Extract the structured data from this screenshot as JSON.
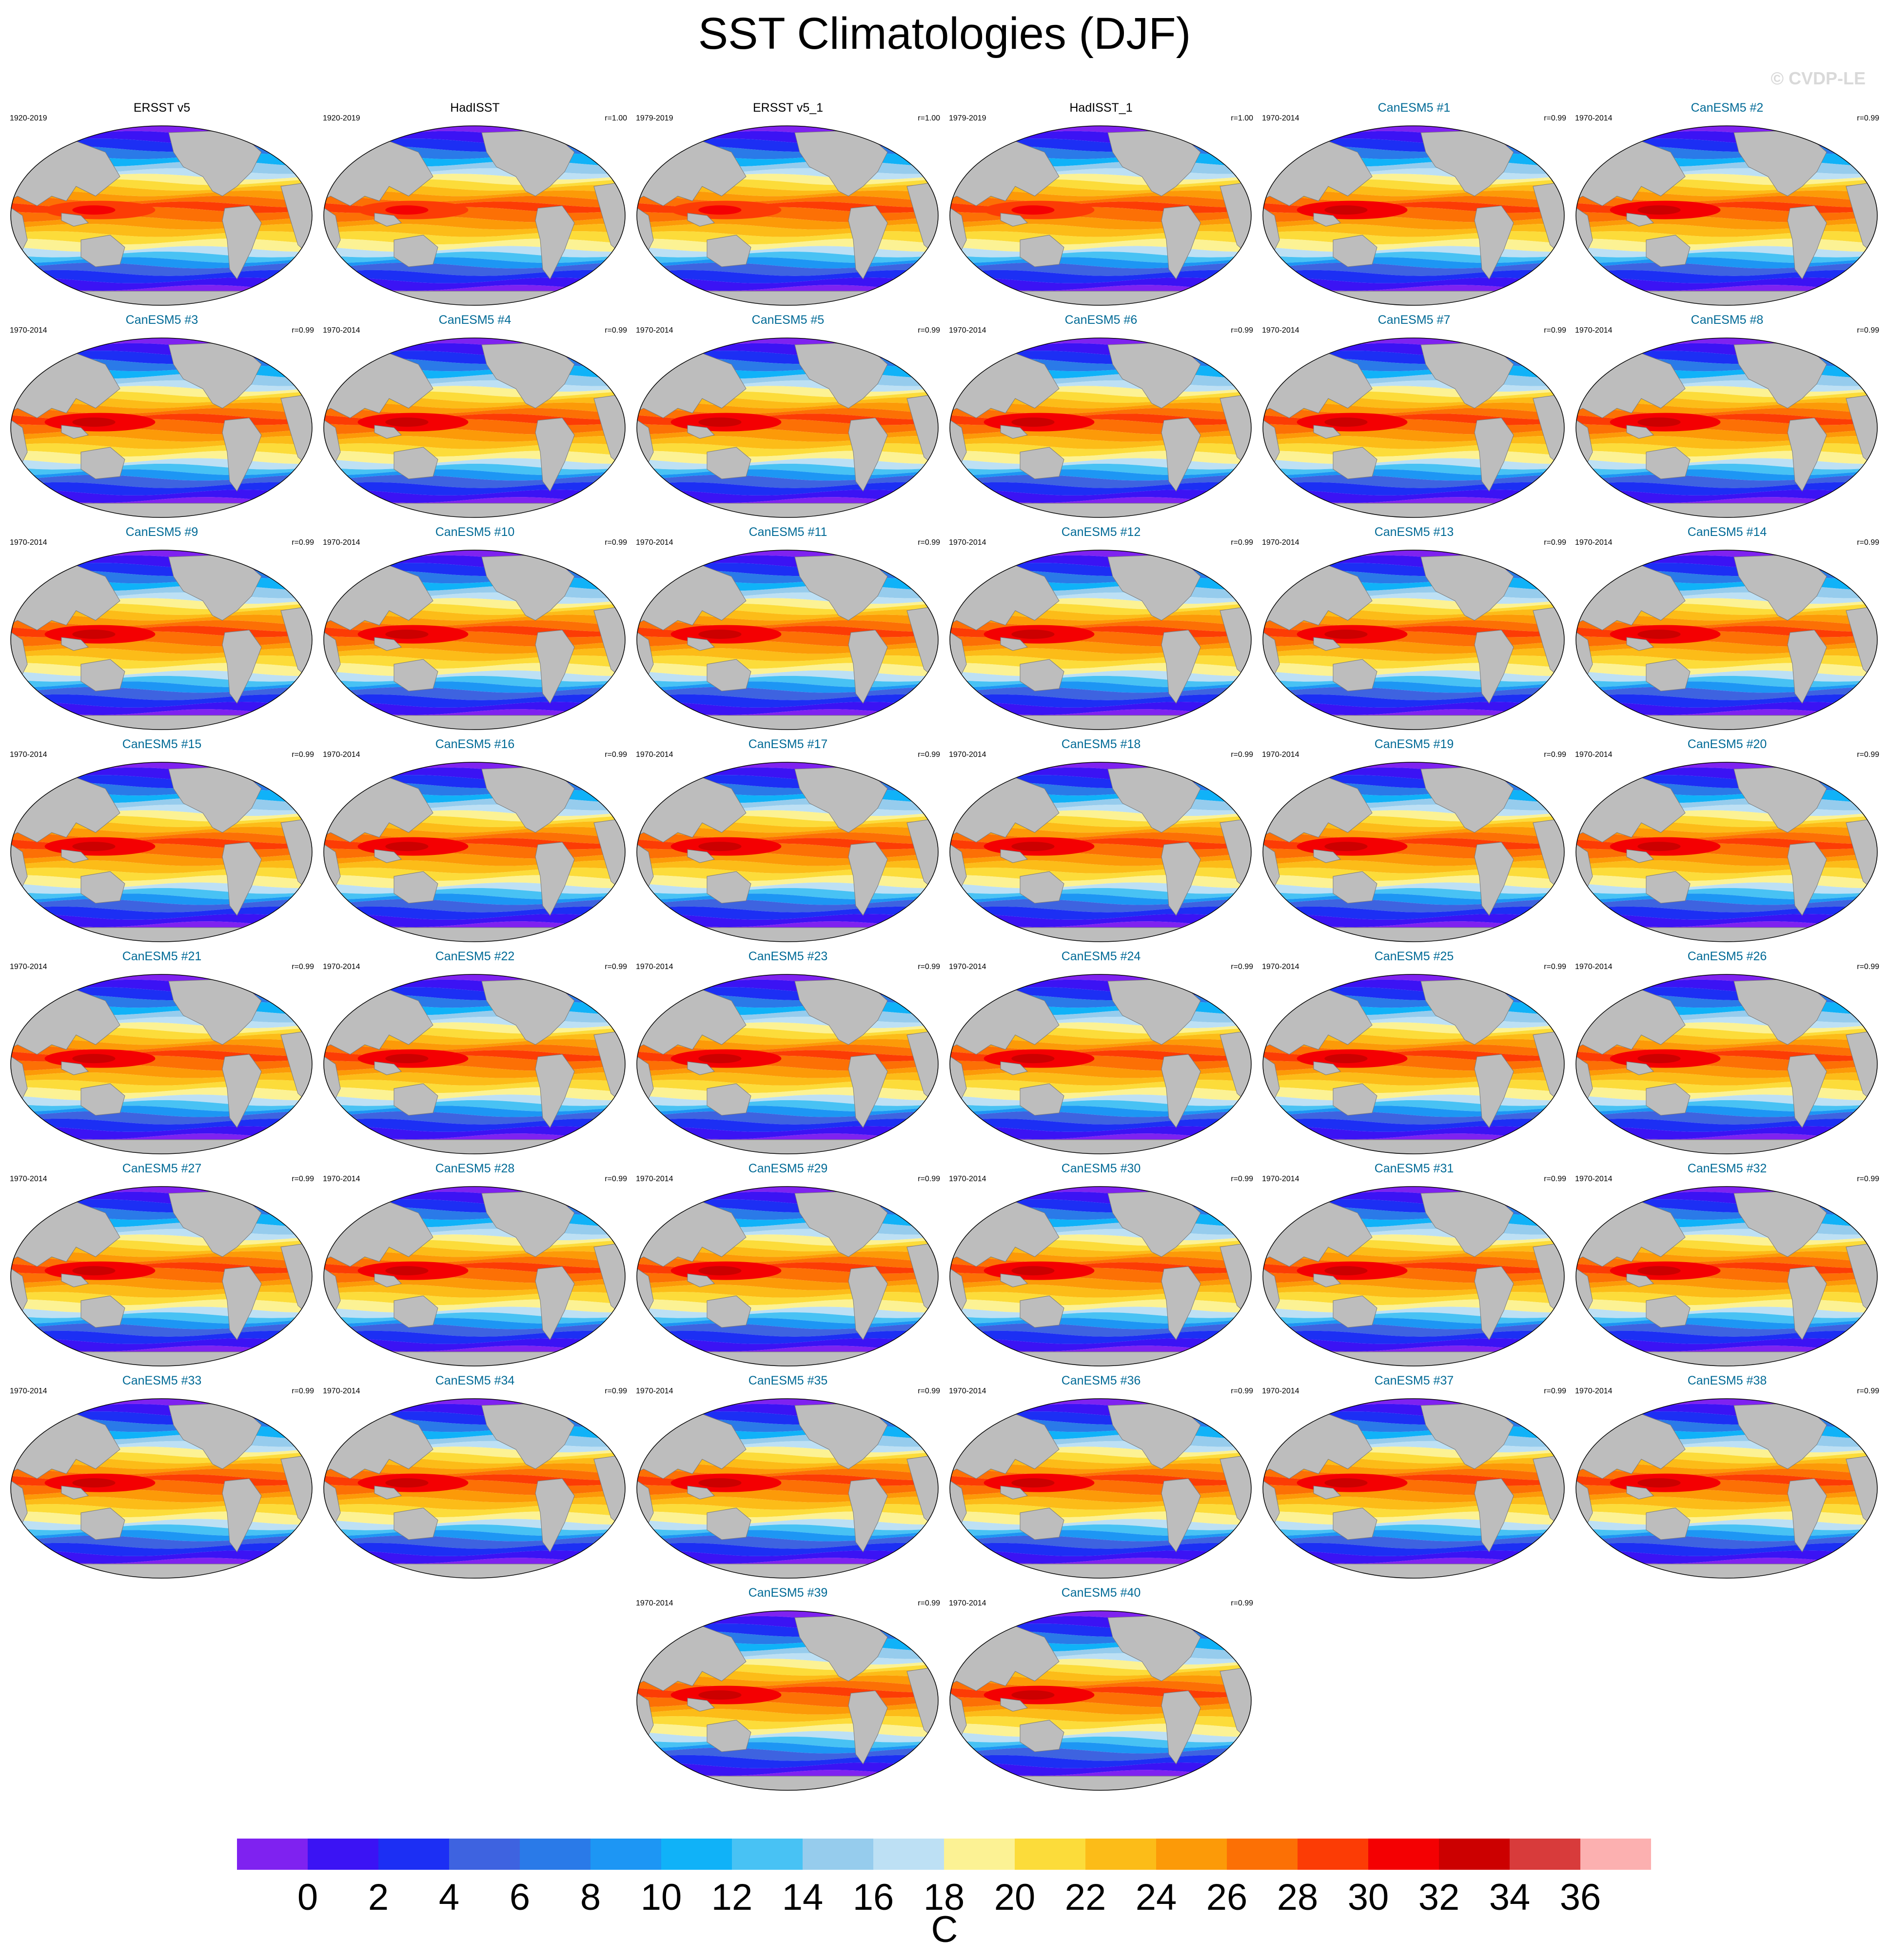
{
  "title": "SST Climatologies (DJF)",
  "copyright": "© CVDP-LE",
  "chart_data": {
    "type": "heatmap",
    "title": "SST Climatologies (DJF)",
    "projection": "Robinson global map",
    "colorbar": {
      "unit": "C",
      "levels": [
        0,
        2,
        4,
        6,
        8,
        10,
        12,
        14,
        16,
        18,
        20,
        22,
        24,
        26,
        28,
        30,
        32,
        34,
        36
      ],
      "tick_labels": [
        "0",
        "2",
        "4",
        "6",
        "8",
        "10",
        "12",
        "14",
        "16",
        "18",
        "20",
        "22",
        "24",
        "26",
        "28",
        "30",
        "32",
        "34",
        "36"
      ],
      "colors": [
        "#7f22f0",
        "#3b13f4",
        "#1c2ff4",
        "#3e63e0",
        "#2a7ae8",
        "#1d96f4",
        "#10b2f8",
        "#48c2f4",
        "#96cced",
        "#bde0f4",
        "#fcf294",
        "#fcdc3a",
        "#fcbc18",
        "#fc9a08",
        "#fc7005",
        "#fc3c05",
        "#f40002",
        "#cc0000",
        "#d83b3b",
        "#fcb0b0"
      ]
    },
    "land_color": "#bdbdbd",
    "panels": [
      {
        "title": "ERSST v5",
        "period": "1920-2019",
        "r": "",
        "kind": "obs"
      },
      {
        "title": "HadISST",
        "period": "1920-2019",
        "r": "r=1.00",
        "kind": "obs"
      },
      {
        "title": "ERSST v5_1",
        "period": "1979-2019",
        "r": "r=1.00",
        "kind": "obs"
      },
      {
        "title": "HadISST_1",
        "period": "1979-2019",
        "r": "r=1.00",
        "kind": "obs"
      },
      {
        "title": "CanESM5 #1",
        "period": "1970-2014",
        "r": "r=0.99",
        "kind": "model"
      },
      {
        "title": "CanESM5 #2",
        "period": "1970-2014",
        "r": "r=0.99",
        "kind": "model"
      },
      {
        "title": "CanESM5 #3",
        "period": "1970-2014",
        "r": "r=0.99",
        "kind": "model"
      },
      {
        "title": "CanESM5 #4",
        "period": "1970-2014",
        "r": "r=0.99",
        "kind": "model"
      },
      {
        "title": "CanESM5 #5",
        "period": "1970-2014",
        "r": "r=0.99",
        "kind": "model"
      },
      {
        "title": "CanESM5 #6",
        "period": "1970-2014",
        "r": "r=0.99",
        "kind": "model"
      },
      {
        "title": "CanESM5 #7",
        "period": "1970-2014",
        "r": "r=0.99",
        "kind": "model"
      },
      {
        "title": "CanESM5 #8",
        "period": "1970-2014",
        "r": "r=0.99",
        "kind": "model"
      },
      {
        "title": "CanESM5 #9",
        "period": "1970-2014",
        "r": "r=0.99",
        "kind": "model"
      },
      {
        "title": "CanESM5 #10",
        "period": "1970-2014",
        "r": "r=0.99",
        "kind": "model"
      },
      {
        "title": "CanESM5 #11",
        "period": "1970-2014",
        "r": "r=0.99",
        "kind": "model"
      },
      {
        "title": "CanESM5 #12",
        "period": "1970-2014",
        "r": "r=0.99",
        "kind": "model"
      },
      {
        "title": "CanESM5 #13",
        "period": "1970-2014",
        "r": "r=0.99",
        "kind": "model"
      },
      {
        "title": "CanESM5 #14",
        "period": "1970-2014",
        "r": "r=0.99",
        "kind": "model"
      },
      {
        "title": "CanESM5 #15",
        "period": "1970-2014",
        "r": "r=0.99",
        "kind": "model"
      },
      {
        "title": "CanESM5 #16",
        "period": "1970-2014",
        "r": "r=0.99",
        "kind": "model"
      },
      {
        "title": "CanESM5 #17",
        "period": "1970-2014",
        "r": "r=0.99",
        "kind": "model"
      },
      {
        "title": "CanESM5 #18",
        "period": "1970-2014",
        "r": "r=0.99",
        "kind": "model"
      },
      {
        "title": "CanESM5 #19",
        "period": "1970-2014",
        "r": "r=0.99",
        "kind": "model"
      },
      {
        "title": "CanESM5 #20",
        "period": "1970-2014",
        "r": "r=0.99",
        "kind": "model"
      },
      {
        "title": "CanESM5 #21",
        "period": "1970-2014",
        "r": "r=0.99",
        "kind": "model"
      },
      {
        "title": "CanESM5 #22",
        "period": "1970-2014",
        "r": "r=0.99",
        "kind": "model"
      },
      {
        "title": "CanESM5 #23",
        "period": "1970-2014",
        "r": "r=0.99",
        "kind": "model"
      },
      {
        "title": "CanESM5 #24",
        "period": "1970-2014",
        "r": "r=0.99",
        "kind": "model"
      },
      {
        "title": "CanESM5 #25",
        "period": "1970-2014",
        "r": "r=0.99",
        "kind": "model"
      },
      {
        "title": "CanESM5 #26",
        "period": "1970-2014",
        "r": "r=0.99",
        "kind": "model"
      },
      {
        "title": "CanESM5 #27",
        "period": "1970-2014",
        "r": "r=0.99",
        "kind": "model"
      },
      {
        "title": "CanESM5 #28",
        "period": "1970-2014",
        "r": "r=0.99",
        "kind": "model"
      },
      {
        "title": "CanESM5 #29",
        "period": "1970-2014",
        "r": "r=0.99",
        "kind": "model"
      },
      {
        "title": "CanESM5 #30",
        "period": "1970-2014",
        "r": "r=0.99",
        "kind": "model"
      },
      {
        "title": "CanESM5 #31",
        "period": "1970-2014",
        "r": "r=0.99",
        "kind": "model"
      },
      {
        "title": "CanESM5 #32",
        "period": "1970-2014",
        "r": "r=0.99",
        "kind": "model"
      },
      {
        "title": "CanESM5 #33",
        "period": "1970-2014",
        "r": "r=0.99",
        "kind": "model"
      },
      {
        "title": "CanESM5 #34",
        "period": "1970-2014",
        "r": "r=0.99",
        "kind": "model"
      },
      {
        "title": "CanESM5 #35",
        "period": "1970-2014",
        "r": "r=0.99",
        "kind": "model"
      },
      {
        "title": "CanESM5 #36",
        "period": "1970-2014",
        "r": "r=0.99",
        "kind": "model"
      },
      {
        "title": "CanESM5 #37",
        "period": "1970-2014",
        "r": "r=0.99",
        "kind": "model"
      },
      {
        "title": "CanESM5 #38",
        "period": "1970-2014",
        "r": "r=0.99",
        "kind": "model"
      },
      {
        "title": "CanESM5 #39",
        "period": "1970-2014",
        "r": "r=0.99",
        "kind": "model"
      },
      {
        "title": "CanESM5 #40",
        "period": "1970-2014",
        "r": "r=0.99",
        "kind": "model"
      }
    ]
  }
}
